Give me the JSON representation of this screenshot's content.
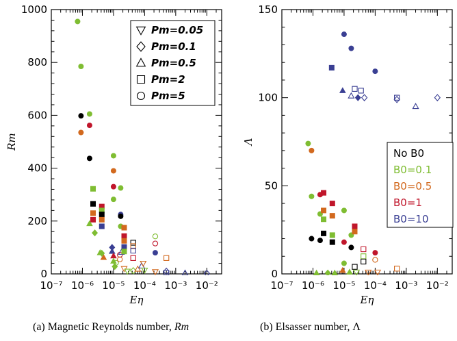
{
  "colors": {
    "No B0": "#000000",
    "B0=0.1": "#7fbd32",
    "B0=0.5": "#d2691e",
    "B0=1": "#c0162b",
    "B0=10": "#3a3f93"
  },
  "pm_markers": {
    "0.05": "triangle-down",
    "0.1": "diamond",
    "0.5": "triangle-up",
    "2": "square",
    "5": "circle"
  },
  "chart_data": [
    {
      "type": "scatter",
      "panel": "a",
      "caption": "(a) Magnetic Reynolds number, Rm",
      "xlabel": "Eη",
      "ylabel": "Rm",
      "xscale": "log",
      "xlim": [
        1e-07,
        0.03
      ],
      "ylim": [
        0,
        1000
      ],
      "xticks": [
        1e-07,
        1e-06,
        1e-05,
        0.0001,
        0.001,
        0.01
      ],
      "xtick_labels": [
        "10⁻⁷",
        "10⁻⁶",
        "10⁻⁵",
        "10⁻⁴",
        "10⁻³",
        "10⁻²"
      ],
      "yticks": [
        0,
        200,
        400,
        600,
        800,
        1000
      ],
      "ytick_labels": [
        "0",
        "200",
        "400",
        "600",
        "800",
        "1000"
      ],
      "legend": {
        "placement": "top-right",
        "entries": [
          {
            "label": "Pm=0.05",
            "marker": "triangle-down"
          },
          {
            "label": "Pm=0.1",
            "marker": "diamond"
          },
          {
            "label": "Pm=0.5",
            "marker": "triangle-up"
          },
          {
            "label": "Pm=2",
            "marker": "square"
          },
          {
            "label": "Pm=5",
            "marker": "circle"
          }
        ]
      },
      "points": [
        {
          "x": 7e-07,
          "y": 955,
          "m": "circle",
          "c": "B0=0.1",
          "f": true
        },
        {
          "x": 9e-07,
          "y": 785,
          "m": "circle",
          "c": "B0=0.1",
          "f": true
        },
        {
          "x": 9e-07,
          "y": 598,
          "m": "circle",
          "c": "No B0",
          "f": true
        },
        {
          "x": 9e-07,
          "y": 535,
          "m": "circle",
          "c": "B0=0.5",
          "f": true
        },
        {
          "x": 1.7e-06,
          "y": 605,
          "m": "circle",
          "c": "B0=0.1",
          "f": true
        },
        {
          "x": 1.7e-06,
          "y": 562,
          "m": "circle",
          "c": "B0=1",
          "f": true
        },
        {
          "x": 1.7e-06,
          "y": 437,
          "m": "circle",
          "c": "No B0",
          "f": true
        },
        {
          "x": 2.2e-06,
          "y": 322,
          "m": "square",
          "c": "B0=0.1",
          "f": true
        },
        {
          "x": 2.2e-06,
          "y": 265,
          "m": "square",
          "c": "No B0",
          "f": true
        },
        {
          "x": 2.2e-06,
          "y": 230,
          "m": "square",
          "c": "B0=0.5",
          "f": true
        },
        {
          "x": 2.2e-06,
          "y": 205,
          "m": "square",
          "c": "B0=1",
          "f": true
        },
        {
          "x": 1.7e-06,
          "y": 190,
          "m": "triangle-up",
          "c": "B0=0.1",
          "f": true
        },
        {
          "x": 2.5e-06,
          "y": 155,
          "m": "diamond",
          "c": "B0=0.1",
          "f": true
        },
        {
          "x": 4.2e-06,
          "y": 255,
          "m": "square",
          "c": "B0=1",
          "f": true
        },
        {
          "x": 4.2e-06,
          "y": 240,
          "m": "square",
          "c": "B0=0.1",
          "f": true
        },
        {
          "x": 4.2e-06,
          "y": 225,
          "m": "square",
          "c": "No B0",
          "f": true
        },
        {
          "x": 4.2e-06,
          "y": 205,
          "m": "square",
          "c": "B0=0.5",
          "f": true
        },
        {
          "x": 4.2e-06,
          "y": 180,
          "m": "square",
          "c": "B0=10",
          "f": true
        },
        {
          "x": 3.7e-06,
          "y": 80,
          "m": "triangle-up",
          "c": "B0=0.1",
          "f": true
        },
        {
          "x": 4.8e-06,
          "y": 62,
          "m": "triangle-up",
          "c": "B0=0.5",
          "f": true
        },
        {
          "x": 4.2e-06,
          "y": 78,
          "m": "diamond",
          "c": "B0=0.1",
          "f": true
        },
        {
          "x": 1e-05,
          "y": 447,
          "m": "circle",
          "c": "B0=0.1",
          "f": true
        },
        {
          "x": 1e-05,
          "y": 390,
          "m": "circle",
          "c": "B0=0.5",
          "f": true
        },
        {
          "x": 1e-05,
          "y": 330,
          "m": "circle",
          "c": "B0=1",
          "f": true
        },
        {
          "x": 1e-05,
          "y": 282,
          "m": "circle",
          "c": "B0=0.1",
          "f": true
        },
        {
          "x": 1.7e-05,
          "y": 325,
          "m": "circle",
          "c": "B0=0.1",
          "f": true
        },
        {
          "x": 1.7e-05,
          "y": 225,
          "m": "circle",
          "c": "B0=10",
          "f": true
        },
        {
          "x": 1.7e-05,
          "y": 218,
          "m": "circle",
          "c": "No B0",
          "f": true
        },
        {
          "x": 1.7e-05,
          "y": 180,
          "m": "circle",
          "c": "B0=0.1",
          "f": true
        },
        {
          "x": 9e-06,
          "y": 85,
          "m": "triangle-up",
          "c": "B0=10",
          "f": true
        },
        {
          "x": 9e-06,
          "y": 100,
          "m": "diamond",
          "c": "B0=10",
          "f": true
        },
        {
          "x": 1e-05,
          "y": 68,
          "m": "triangle-up",
          "c": "B0=1",
          "f": true
        },
        {
          "x": 1e-05,
          "y": 48,
          "m": "triangle-up",
          "c": "B0=0.1",
          "f": true
        },
        {
          "x": 1.1e-05,
          "y": 28,
          "m": "diamond",
          "c": "B0=0.1",
          "f": true
        },
        {
          "x": 1.2e-05,
          "y": 42,
          "m": "circle",
          "c": "B0=0.1",
          "f": false
        },
        {
          "x": 1.6e-05,
          "y": 72,
          "m": "circle",
          "c": "B0=1",
          "f": false
        },
        {
          "x": 1.6e-05,
          "y": 55,
          "m": "circle",
          "c": "B0=0.5",
          "f": false
        },
        {
          "x": 1.8e-05,
          "y": 82,
          "m": "triangle-up",
          "c": "B0=10",
          "f": false
        },
        {
          "x": 2.2e-05,
          "y": 175,
          "m": "square",
          "c": "B0=0.5",
          "f": true
        },
        {
          "x": 2.2e-05,
          "y": 143,
          "m": "square",
          "c": "B0=1",
          "f": true
        },
        {
          "x": 2.2e-05,
          "y": 125,
          "m": "square",
          "c": "B0=0.5",
          "f": true
        },
        {
          "x": 2.2e-05,
          "y": 102,
          "m": "square",
          "c": "B0=10",
          "f": true
        },
        {
          "x": 2.2e-05,
          "y": 85,
          "m": "square",
          "c": "B0=0.1",
          "f": true
        },
        {
          "x": 2.2e-05,
          "y": 20,
          "m": "triangle-down",
          "c": "B0=0.5",
          "f": false
        },
        {
          "x": 2.8e-05,
          "y": 10,
          "m": "triangle-down",
          "c": "B0=0.1",
          "f": false
        },
        {
          "x": 4.3e-05,
          "y": 118,
          "m": "square",
          "c": "No B0",
          "f": false
        },
        {
          "x": 4.3e-05,
          "y": 105,
          "m": "square",
          "c": "B0=0.5",
          "f": false
        },
        {
          "x": 4.3e-05,
          "y": 88,
          "m": "square",
          "c": "B0=10",
          "f": false
        },
        {
          "x": 4.3e-05,
          "y": 60,
          "m": "square",
          "c": "B0=1",
          "f": false
        },
        {
          "x": 4.3e-05,
          "y": 12,
          "m": "diamond",
          "c": "B0=0.1",
          "f": false
        },
        {
          "x": 6e-05,
          "y": 18,
          "m": "triangle-up",
          "c": "B0=0.5",
          "f": false
        },
        {
          "x": 8e-05,
          "y": 30,
          "m": "triangle-up",
          "c": "B0=10",
          "f": false
        },
        {
          "x": 9e-05,
          "y": 40,
          "m": "triangle-down",
          "c": "B0=0.5",
          "f": false
        },
        {
          "x": 0.0001,
          "y": 14,
          "m": "triangle-down",
          "c": "B0=0.1",
          "f": false
        },
        {
          "x": 0.00022,
          "y": 142,
          "m": "circle",
          "c": "B0=0.1",
          "f": false
        },
        {
          "x": 0.00022,
          "y": 115,
          "m": "circle",
          "c": "B0=1",
          "f": false
        },
        {
          "x": 0.00022,
          "y": 80,
          "m": "circle",
          "c": "B0=10",
          "f": true
        },
        {
          "x": 0.00022,
          "y": 8,
          "m": "triangle-down",
          "c": "B0=0.5",
          "f": false
        },
        {
          "x": 0.0005,
          "y": 60,
          "m": "square",
          "c": "B0=0.5",
          "f": false
        },
        {
          "x": 0.0005,
          "y": 10,
          "m": "diamond",
          "c": "B0=10",
          "f": false
        },
        {
          "x": 0.0005,
          "y": 4,
          "m": "square",
          "c": "B0=10",
          "f": false
        },
        {
          "x": 0.002,
          "y": 3,
          "m": "triangle-up",
          "c": "B0=10",
          "f": false
        },
        {
          "x": 0.01,
          "y": 2,
          "m": "diamond",
          "c": "B0=10",
          "f": false
        }
      ]
    },
    {
      "type": "scatter",
      "panel": "b",
      "caption": "(b) Elsasser number, Λ",
      "xlabel": "Eη",
      "ylabel": "Λ",
      "xscale": "log",
      "xlim": [
        1e-07,
        0.03
      ],
      "ylim": [
        0,
        150
      ],
      "xticks": [
        1e-07,
        1e-06,
        1e-05,
        0.0001,
        0.001,
        0.01
      ],
      "xtick_labels": [
        "10⁻⁷",
        "10⁻⁶",
        "10⁻⁵",
        "10⁻⁴",
        "10⁻³",
        "10⁻²"
      ],
      "yticks": [
        0,
        50,
        100,
        150
      ],
      "ytick_labels": [
        "0",
        "50",
        "100",
        "150"
      ],
      "legend": {
        "placement": "right",
        "entries": [
          {
            "label": "No B0",
            "color": "No B0"
          },
          {
            "label": "B0=0.1",
            "color": "B0=0.1"
          },
          {
            "label": "B0=0.5",
            "color": "B0=0.5"
          },
          {
            "label": "B0=1",
            "color": "B0=1"
          },
          {
            "label": "B0=10",
            "color": "B0=10"
          }
        ]
      },
      "points": [
        {
          "x": 1e-05,
          "y": 136,
          "m": "circle",
          "c": "B0=10",
          "f": true
        },
        {
          "x": 1.7e-05,
          "y": 128,
          "m": "circle",
          "c": "B0=10",
          "f": true
        },
        {
          "x": 4e-06,
          "y": 117,
          "m": "square",
          "c": "B0=10",
          "f": true
        },
        {
          "x": 0.0001,
          "y": 115,
          "m": "circle",
          "c": "B0=10",
          "f": true
        },
        {
          "x": 9e-06,
          "y": 104,
          "m": "triangle-up",
          "c": "B0=10",
          "f": true
        },
        {
          "x": 1.7e-05,
          "y": 101,
          "m": "triangle-up",
          "c": "B0=10",
          "f": false
        },
        {
          "x": 2.8e-05,
          "y": 100,
          "m": "diamond",
          "c": "B0=10",
          "f": true
        },
        {
          "x": 4.5e-05,
          "y": 100,
          "m": "diamond",
          "c": "B0=10",
          "f": false
        },
        {
          "x": 2.2e-05,
          "y": 105,
          "m": "square",
          "c": "B0=10",
          "f": false
        },
        {
          "x": 3.5e-05,
          "y": 104,
          "m": "square",
          "c": "B0=10",
          "f": false
        },
        {
          "x": 0.0005,
          "y": 100,
          "m": "square",
          "c": "B0=10",
          "f": false
        },
        {
          "x": 0.0005,
          "y": 99,
          "m": "diamond",
          "c": "B0=10",
          "f": false
        },
        {
          "x": 0.002,
          "y": 95,
          "m": "triangle-up",
          "c": "B0=10",
          "f": false
        },
        {
          "x": 0.01,
          "y": 100,
          "m": "diamond",
          "c": "B0=10",
          "f": false
        },
        {
          "x": 7e-07,
          "y": 74,
          "m": "circle",
          "c": "B0=0.1",
          "f": true
        },
        {
          "x": 9e-07,
          "y": 70,
          "m": "circle",
          "c": "B0=0.5",
          "f": true
        },
        {
          "x": 9e-07,
          "y": 44,
          "m": "circle",
          "c": "B0=0.1",
          "f": true
        },
        {
          "x": 9e-07,
          "y": 20,
          "m": "circle",
          "c": "No B0",
          "f": true
        },
        {
          "x": 1.7e-06,
          "y": 45,
          "m": "circle",
          "c": "B0=1",
          "f": true
        },
        {
          "x": 1.7e-06,
          "y": 34,
          "m": "circle",
          "c": "B0=0.1",
          "f": true
        },
        {
          "x": 1.7e-06,
          "y": 19,
          "m": "circle",
          "c": "No B0",
          "f": true
        },
        {
          "x": 2.2e-06,
          "y": 46,
          "m": "square",
          "c": "B0=1",
          "f": true
        },
        {
          "x": 2.2e-06,
          "y": 36,
          "m": "square",
          "c": "B0=0.5",
          "f": true
        },
        {
          "x": 2.2e-06,
          "y": 31,
          "m": "square",
          "c": "B0=0.1",
          "f": true
        },
        {
          "x": 2.2e-06,
          "y": 23,
          "m": "square",
          "c": "No B0",
          "f": true
        },
        {
          "x": 4.2e-06,
          "y": 40,
          "m": "square",
          "c": "B0=1",
          "f": true
        },
        {
          "x": 4.2e-06,
          "y": 33,
          "m": "square",
          "c": "B0=0.5",
          "f": true
        },
        {
          "x": 4.2e-06,
          "y": 22,
          "m": "square",
          "c": "B0=0.1",
          "f": true
        },
        {
          "x": 4.2e-06,
          "y": 18,
          "m": "square",
          "c": "No B0",
          "f": true
        },
        {
          "x": 1e-05,
          "y": 36,
          "m": "circle",
          "c": "B0=0.1",
          "f": true
        },
        {
          "x": 1e-05,
          "y": 18,
          "m": "circle",
          "c": "B0=1",
          "f": true
        },
        {
          "x": 1e-05,
          "y": 6,
          "m": "circle",
          "c": "B0=0.1",
          "f": true
        },
        {
          "x": 1.7e-05,
          "y": 22,
          "m": "circle",
          "c": "B0=0.1",
          "f": true
        },
        {
          "x": 1.7e-05,
          "y": 15,
          "m": "circle",
          "c": "No B0",
          "f": true
        },
        {
          "x": 2.2e-05,
          "y": 27,
          "m": "square",
          "c": "B0=1",
          "f": true
        },
        {
          "x": 2.2e-05,
          "y": 24,
          "m": "square",
          "c": "B0=0.5",
          "f": true
        },
        {
          "x": 2.2e-05,
          "y": 4,
          "m": "square",
          "c": "No B0",
          "f": false
        },
        {
          "x": 4.2e-05,
          "y": 14,
          "m": "square",
          "c": "B0=1",
          "f": false
        },
        {
          "x": 4.2e-05,
          "y": 10,
          "m": "square",
          "c": "B0=0.1",
          "f": false
        },
        {
          "x": 4.2e-05,
          "y": 7,
          "m": "square",
          "c": "No B0",
          "f": false
        },
        {
          "x": 0.0001,
          "y": 12,
          "m": "circle",
          "c": "B0=1",
          "f": true
        },
        {
          "x": 0.0001,
          "y": 8,
          "m": "circle",
          "c": "B0=0.5",
          "f": false
        },
        {
          "x": 0.0005,
          "y": 3,
          "m": "square",
          "c": "B0=0.5",
          "f": false
        },
        {
          "x": 9e-06,
          "y": 2,
          "m": "triangle-up",
          "c": "B0=0.5",
          "f": true
        },
        {
          "x": 1.5e-05,
          "y": 1,
          "m": "triangle-up",
          "c": "B0=0.1",
          "f": true
        },
        {
          "x": 2.5e-05,
          "y": 1,
          "m": "triangle-down",
          "c": "B0=0.1",
          "f": false
        },
        {
          "x": 6e-05,
          "y": 1,
          "m": "triangle-down",
          "c": "B0=0.5",
          "f": false
        },
        {
          "x": 0.00012,
          "y": 1,
          "m": "triangle-down",
          "c": "B0=0.5",
          "f": false
        },
        {
          "x": 5e-06,
          "y": 0.5,
          "m": "triangle-up",
          "c": "B0=0.1",
          "f": true
        },
        {
          "x": 1.3e-06,
          "y": 0.5,
          "m": "triangle-up",
          "c": "B0=0.1",
          "f": true
        },
        {
          "x": 3e-06,
          "y": 0.5,
          "m": "diamond",
          "c": "B0=0.1",
          "f": true
        }
      ]
    }
  ],
  "captions": {
    "a_prefix": "(a) Magnetic Reynolds number, ",
    "a_var": "Rm",
    "b_text": "(b) Elsasser number, Λ"
  }
}
